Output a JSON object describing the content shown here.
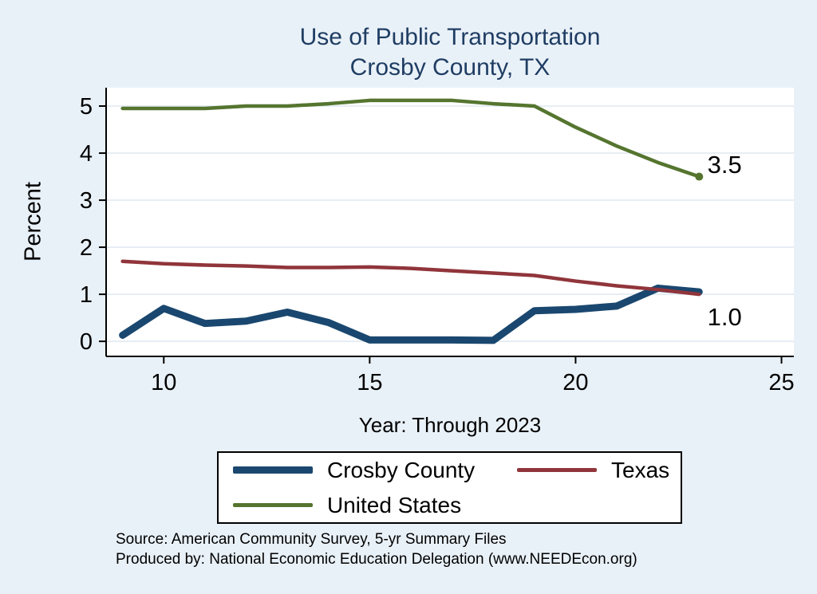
{
  "chart_data": {
    "type": "line",
    "title": "Use of Public Transportation",
    "subtitle": "Crosby County, TX",
    "xlabel": "Year: Through 2023",
    "ylabel": "Percent",
    "x": [
      9,
      10,
      11,
      12,
      13,
      14,
      15,
      16,
      17,
      18,
      19,
      20,
      21,
      22,
      23
    ],
    "xticks": [
      10,
      15,
      20,
      25
    ],
    "yticks": [
      0,
      1,
      2,
      3,
      4,
      5
    ],
    "xlim": [
      8.6,
      25.3
    ],
    "ylim": [
      -0.32,
      5.39
    ],
    "grid": "horizontal",
    "legend_position": "bottom",
    "series": [
      {
        "name": "Crosby County",
        "color": "#1a476f",
        "width": 9,
        "values": [
          0.13,
          0.7,
          0.38,
          0.43,
          0.62,
          0.4,
          0.03,
          0.03,
          0.03,
          0.02,
          0.65,
          0.68,
          0.75,
          1.13,
          1.05
        ]
      },
      {
        "name": "Texas",
        "color": "#90353b",
        "width": 4.5,
        "values": [
          1.7,
          1.65,
          1.62,
          1.6,
          1.57,
          1.57,
          1.58,
          1.55,
          1.5,
          1.45,
          1.4,
          1.28,
          1.18,
          1.1,
          1.0
        ]
      },
      {
        "name": "United States",
        "color": "#55752f",
        "width": 4.5,
        "values": [
          4.95,
          4.95,
          4.95,
          5.0,
          5.0,
          5.05,
          5.12,
          5.12,
          5.12,
          5.05,
          5.0,
          4.55,
          4.15,
          3.8,
          3.5
        ]
      }
    ],
    "end_labels": [
      {
        "text": "3.5",
        "x": 23.2,
        "y": 3.58,
        "color": "#000000"
      },
      {
        "text": "1.0",
        "x": 23.2,
        "y": 0.34,
        "color": "#000000"
      }
    ],
    "end_marker": {
      "series": 2,
      "x": 23,
      "y": 3.5
    }
  },
  "notes": {
    "line1": "Source: American Community Survey, 5-yr Summary Files",
    "line2": "Produced by: National Economic Education Delegation (www.NEEDEcon.org)"
  },
  "colors": {
    "background": "#e9f1f8",
    "plot_background": "#ffffff",
    "grid": "#dfe8f0",
    "axis": "#000000",
    "title": "#1f3d63"
  }
}
